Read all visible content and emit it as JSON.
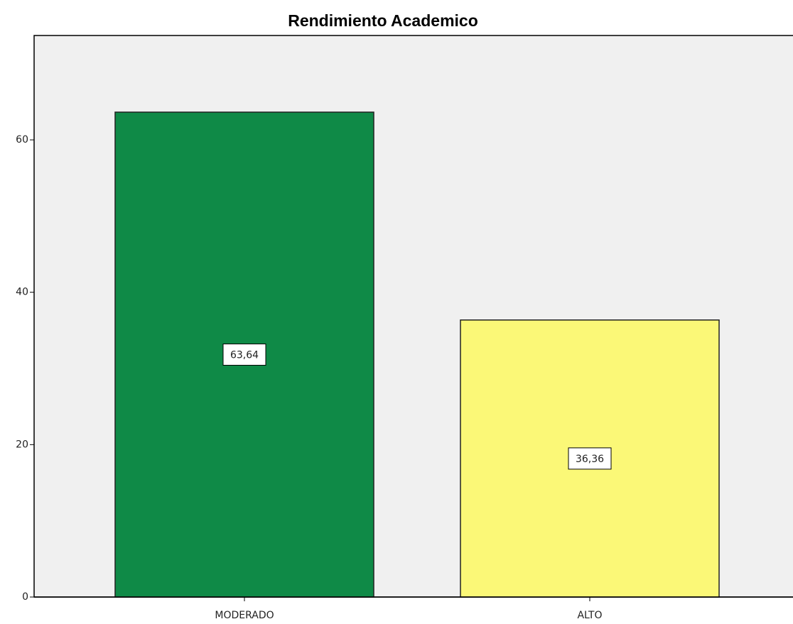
{
  "chart_data": {
    "type": "bar",
    "title": "Rendimiento Academico",
    "categories": [
      "MODERADO",
      "ALTO"
    ],
    "values": [
      63.64,
      36.36
    ],
    "value_labels": [
      "63,64",
      "36,36"
    ],
    "colors": [
      "#0f8a47",
      "#fbf877"
    ],
    "ylim": [
      0,
      73.7
    ],
    "yticks": [
      0,
      20,
      40,
      60
    ],
    "grid": false
  }
}
